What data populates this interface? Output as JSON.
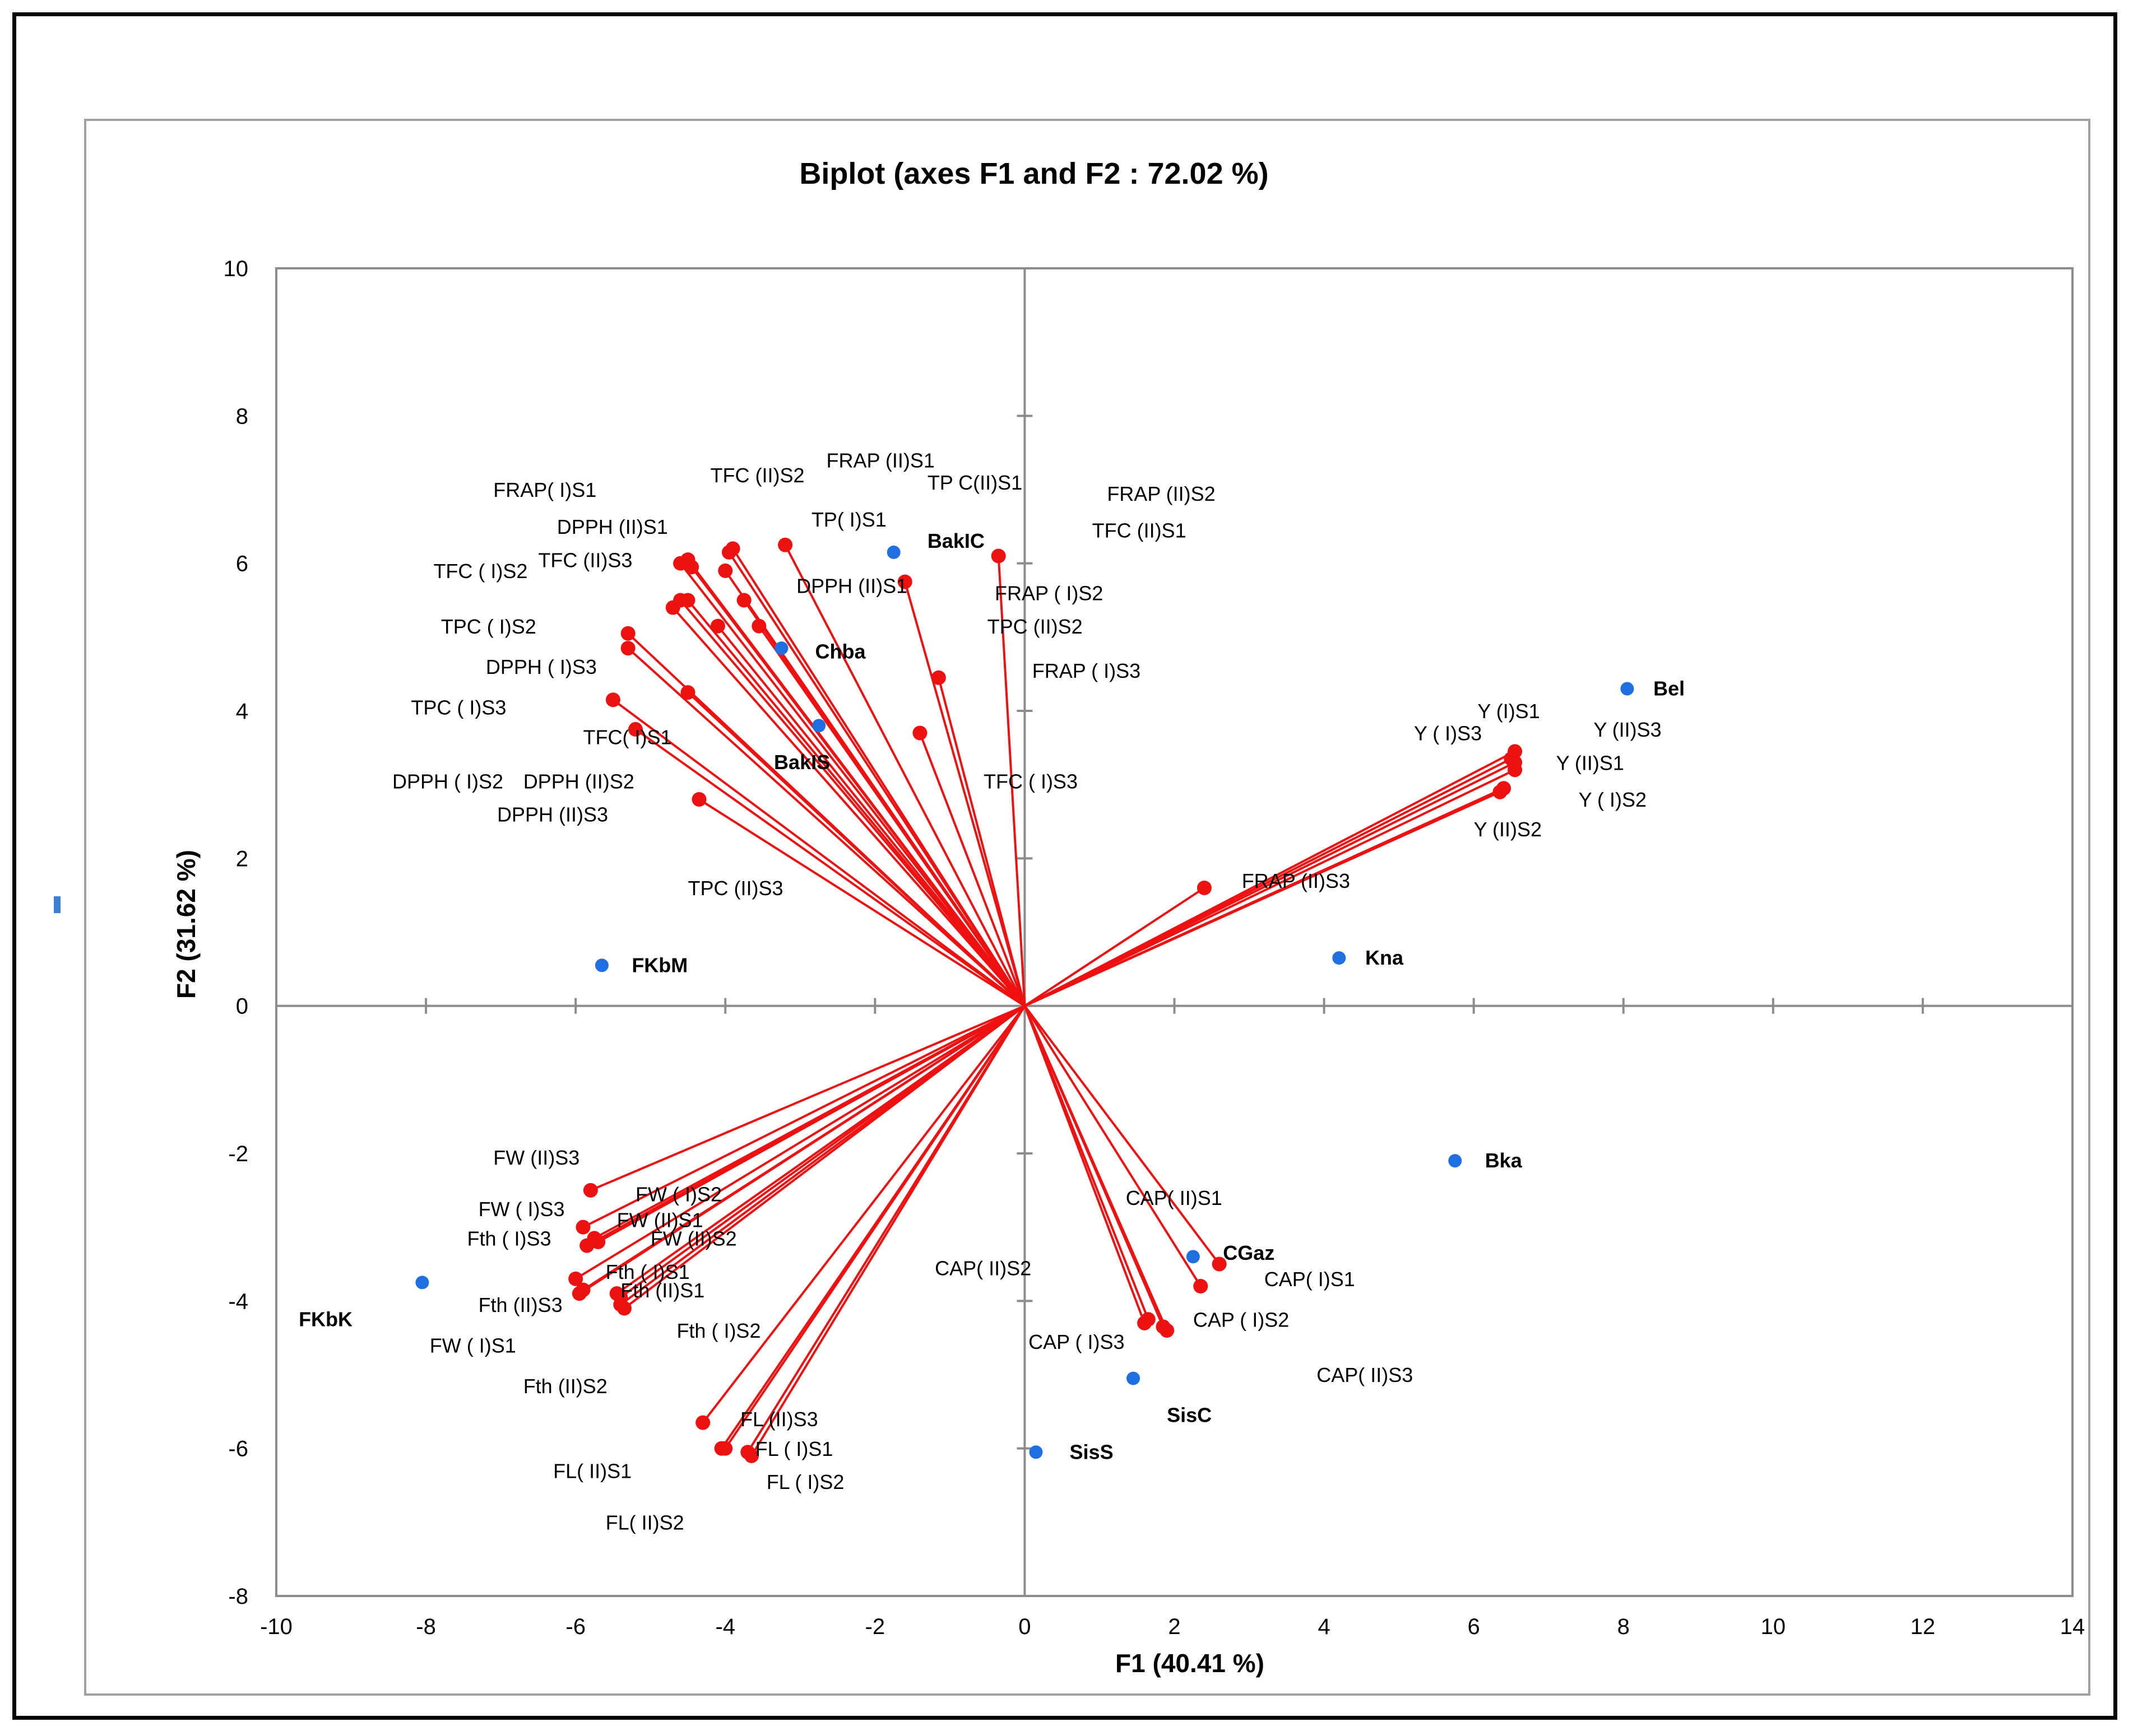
{
  "chart_data": {
    "type": "scatter",
    "subtype": "pca-biplot",
    "title": "Biplot (axes F1 and F2 : 72.02 %)",
    "xlabel": "F1 (40.41 %)",
    "ylabel": "F2 (31.62 %)",
    "xlim": [
      -10,
      14
    ],
    "ylim": [
      -8,
      10
    ],
    "xticks": [
      -10,
      -8,
      -6,
      -4,
      -2,
      0,
      2,
      4,
      6,
      8,
      10,
      12,
      14
    ],
    "yticks": [
      -8,
      -6,
      -4,
      -2,
      0,
      2,
      4,
      6,
      8,
      10
    ],
    "vector_color": "#ee1111",
    "observation_color": "#1f6fe0",
    "variables": [
      {
        "name": "FRAP( I)S1",
        "x": -4.6,
        "y": 6.0
      },
      {
        "name": "TFC (II)S2",
        "x": -4.5,
        "y": 6.05
      },
      {
        "name": "FRAP (II)S1",
        "x": -3.9,
        "y": 6.2
      },
      {
        "name": "TP C(II)S1",
        "x": -3.2,
        "y": 6.25
      },
      {
        "name": "FRAP (II)S2",
        "x": -0.35,
        "y": 6.1
      },
      {
        "name": "DPPH (II)S1",
        "x": -4.45,
        "y": 5.95
      },
      {
        "name": "TP( I)S1",
        "x": -3.95,
        "y": 6.15
      },
      {
        "name": "TFC (II)S1",
        "x": -1.6,
        "y": 5.75
      },
      {
        "name": "TFC (II)S3",
        "x": -4.0,
        "y": 5.9
      },
      {
        "name": "DPPH (II)S1",
        "x": -3.75,
        "y": 5.5
      },
      {
        "name": "TFC ( I)S2",
        "x": -4.6,
        "y": 5.5
      },
      {
        "name": "FRAP ( I)S2",
        "x": -4.5,
        "y": 5.5
      },
      {
        "name": "TPC (II)S2",
        "x": -3.55,
        "y": 5.15
      },
      {
        "name": "TPC ( I)S2",
        "x": -5.3,
        "y": 5.05
      },
      {
        "name": "DPPH ( I)S3",
        "x": -5.3,
        "y": 4.85
      },
      {
        "name": "FRAP ( I)S3",
        "x": -1.15,
        "y": 4.45
      },
      {
        "name": "TPC ( I)S3",
        "x": -4.5,
        "y": 4.25
      },
      {
        "name": "TFC( I)S1",
        "x": -5.5,
        "y": 4.15
      },
      {
        "name": "DPPH ( I)S2",
        "x": -5.2,
        "y": 3.75
      },
      {
        "name": "TFC ( I)S3",
        "x": -1.4,
        "y": 3.7
      },
      {
        "name": "DPPH (II)S2",
        "x": -4.7,
        "y": 5.4
      },
      {
        "name": "DPPH (II)S3",
        "x": -4.1,
        "y": 5.15
      },
      {
        "name": "TPC (II)S3",
        "x": -4.35,
        "y": 2.8
      },
      {
        "name": "Y ( I)S3",
        "x": 6.55,
        "y": 3.45
      },
      {
        "name": "Y (I)S1",
        "x": 6.55,
        "y": 3.3
      },
      {
        "name": "Y (II)S3",
        "x": 6.55,
        "y": 3.2
      },
      {
        "name": "Y (II)S1",
        "x": 6.5,
        "y": 3.35
      },
      {
        "name": "Y ( I)S2",
        "x": 6.4,
        "y": 2.95
      },
      {
        "name": "Y (II)S2",
        "x": 6.35,
        "y": 2.9
      },
      {
        "name": "FRAP (II)S3",
        "x": 2.4,
        "y": 1.6
      },
      {
        "name": "FW (II)S3",
        "x": -5.8,
        "y": -2.5
      },
      {
        "name": "FW ( I)S2",
        "x": -5.9,
        "y": -3.0
      },
      {
        "name": "FW ( I)S3",
        "x": -5.75,
        "y": -3.15
      },
      {
        "name": "FW (II)S1",
        "x": -5.7,
        "y": -3.2
      },
      {
        "name": "FW (II)S2",
        "x": -5.85,
        "y": -3.25
      },
      {
        "name": "Fth ( I)S3",
        "x": -6.0,
        "y": -3.7
      },
      {
        "name": "Fth ( I)S1",
        "x": -5.9,
        "y": -3.85
      },
      {
        "name": "Fth (II)S1",
        "x": -5.45,
        "y": -3.9
      },
      {
        "name": "Fth (II)S3",
        "x": -5.4,
        "y": -4.05
      },
      {
        "name": "FW ( I)S1",
        "x": -5.95,
        "y": -3.9
      },
      {
        "name": "Fth ( I)S2",
        "x": -5.4,
        "y": -3.95
      },
      {
        "name": "Fth (II)S2",
        "x": -5.35,
        "y": -4.1
      },
      {
        "name": "FL (II)S3",
        "x": -4.3,
        "y": -5.65
      },
      {
        "name": "FL( II)S1",
        "x": -4.05,
        "y": -6.0
      },
      {
        "name": "FL ( I)S1",
        "x": -3.7,
        "y": -6.05
      },
      {
        "name": "FL ( I)S2",
        "x": -3.65,
        "y": -6.1
      },
      {
        "name": "FL( II)S2",
        "x": -4.0,
        "y": -6.0
      },
      {
        "name": "CAP( II)S1",
        "x": 2.6,
        "y": -3.5
      },
      {
        "name": "CAP( I)S1",
        "x": 2.35,
        "y": -3.8
      },
      {
        "name": "CAP ( I)S2",
        "x": 1.85,
        "y": -4.35
      },
      {
        "name": "CAP ( I)S3",
        "x": 1.6,
        "y": -4.3
      },
      {
        "name": "CAP( II)S2",
        "x": 1.65,
        "y": -4.25
      },
      {
        "name": "CAP( II)S3",
        "x": 1.9,
        "y": -4.4
      }
    ],
    "variable_labels": [
      {
        "text": "FRAP( I)S1",
        "x": -7.1,
        "y": 6.9
      },
      {
        "text": "TFC (II)S2",
        "x": -4.2,
        "y": 7.1
      },
      {
        "text": "FRAP (II)S1",
        "x": -2.65,
        "y": 7.3
      },
      {
        "text": "TP C(II)S1",
        "x": -1.3,
        "y": 7.0
      },
      {
        "text": "FRAP (II)S2",
        "x": 1.1,
        "y": 6.85
      },
      {
        "text": "DPPH (II)S1",
        "x": -6.25,
        "y": 6.4
      },
      {
        "text": "TP( I)S1",
        "x": -2.85,
        "y": 6.5
      },
      {
        "text": "TFC (II)S1",
        "x": 0.9,
        "y": 6.35
      },
      {
        "text": "TFC (II)S3",
        "x": -6.5,
        "y": 5.95
      },
      {
        "text": "DPPH (II)S1",
        "x": -3.05,
        "y": 5.6
      },
      {
        "text": "TFC ( I)S2",
        "x": -7.9,
        "y": 5.8
      },
      {
        "text": "FRAP ( I)S2",
        "x": -0.4,
        "y": 5.5
      },
      {
        "text": "TPC (II)S2",
        "x": -0.5,
        "y": 5.05
      },
      {
        "text": "TPC ( I)S2",
        "x": -7.8,
        "y": 5.05
      },
      {
        "text": "DPPH ( I)S3",
        "x": -7.2,
        "y": 4.5
      },
      {
        "text": "FRAP ( I)S3",
        "x": 0.1,
        "y": 4.45
      },
      {
        "text": "TPC ( I)S3",
        "x": -8.2,
        "y": 3.95
      },
      {
        "text": "TFC( I)S1",
        "x": -5.9,
        "y": 3.55
      },
      {
        "text": "DPPH ( I)S2",
        "x": -8.45,
        "y": 2.95
      },
      {
        "text": "DPPH (II)S2",
        "x": -6.7,
        "y": 2.95
      },
      {
        "text": "DPPH (II)S3",
        "x": -7.05,
        "y": 2.5
      },
      {
        "text": "TPC (II)S3",
        "x": -4.5,
        "y": 1.5
      },
      {
        "text": "TFC ( I)S3",
        "x": -0.55,
        "y": 2.95
      },
      {
        "text": "Y ( I)S3",
        "x": 5.2,
        "y": 3.6
      },
      {
        "text": "Y (I)S1",
        "x": 6.05,
        "y": 3.9
      },
      {
        "text": "Y (II)S3",
        "x": 7.6,
        "y": 3.65
      },
      {
        "text": "Y (II)S1",
        "x": 7.1,
        "y": 3.2
      },
      {
        "text": "Y ( I)S2",
        "x": 7.4,
        "y": 2.7
      },
      {
        "text": "Y (II)S2",
        "x": 6.0,
        "y": 2.3
      },
      {
        "text": "FRAP (II)S3",
        "x": 2.9,
        "y": 1.6
      },
      {
        "text": "FW (II)S3",
        "x": -7.1,
        "y": -2.15
      },
      {
        "text": "FW ( I)S2",
        "x": -5.2,
        "y": -2.65
      },
      {
        "text": "FW ( I)S3",
        "x": -7.3,
        "y": -2.85
      },
      {
        "text": "FW (II)S1",
        "x": -5.45,
        "y": -3.0
      },
      {
        "text": "FW (II)S2",
        "x": -5.0,
        "y": -3.25
      },
      {
        "text": "Fth ( I)S3",
        "x": -7.45,
        "y": -3.25
      },
      {
        "text": "Fth ( I)S1",
        "x": -5.6,
        "y": -3.7
      },
      {
        "text": "Fth (II)S1",
        "x": -5.4,
        "y": -3.95
      },
      {
        "text": "Fth (II)S3",
        "x": -7.3,
        "y": -4.15
      },
      {
        "text": "FW ( I)S1",
        "x": -7.95,
        "y": -4.7
      },
      {
        "text": "Fth ( I)S2",
        "x": -4.65,
        "y": -4.5
      },
      {
        "text": "Fth (II)S2",
        "x": -6.7,
        "y": -5.25
      },
      {
        "text": "FL (II)S3",
        "x": -3.8,
        "y": -5.7
      },
      {
        "text": "FL ( I)S1",
        "x": -3.6,
        "y": -6.1
      },
      {
        "text": "FL ( I)S2",
        "x": -3.45,
        "y": -6.55
      },
      {
        "text": "FL( II)S1",
        "x": -6.3,
        "y": -6.4
      },
      {
        "text": "FL( II)S2",
        "x": -5.6,
        "y": -7.1
      },
      {
        "text": "CAP( II)S1",
        "x": 1.35,
        "y": -2.7
      },
      {
        "text": "CAP( I)S1",
        "x": 3.2,
        "y": -3.8
      },
      {
        "text": "CAP ( I)S2",
        "x": 2.25,
        "y": -4.35
      },
      {
        "text": "CAP ( I)S3",
        "x": 0.05,
        "y": -4.65
      },
      {
        "text": "CAP( II)S2",
        "x": -1.2,
        "y": -3.65
      },
      {
        "text": "CAP( II)S3",
        "x": 3.9,
        "y": -5.1
      }
    ],
    "observations": [
      {
        "name": "Bel",
        "x": 8.05,
        "y": 4.3
      },
      {
        "name": "BakIC",
        "x": -1.75,
        "y": 6.15
      },
      {
        "name": "Chba",
        "x": -3.25,
        "y": 4.85
      },
      {
        "name": "BakIS",
        "x": -2.75,
        "y": 3.8
      },
      {
        "name": "FKbM",
        "x": -5.65,
        "y": 0.55
      },
      {
        "name": "Kna",
        "x": 4.2,
        "y": 0.65
      },
      {
        "name": "Bka",
        "x": 5.75,
        "y": -2.1
      },
      {
        "name": "CGaz",
        "x": 2.25,
        "y": -3.4
      },
      {
        "name": "SisC",
        "x": 1.45,
        "y": -5.05
      },
      {
        "name": "SisS",
        "x": 0.15,
        "y": -6.05
      },
      {
        "name": "FKbK",
        "x": -8.05,
        "y": -3.75
      }
    ],
    "observation_labels": [
      {
        "text": "Bel",
        "x": 8.4,
        "y": 4.3
      },
      {
        "text": "BakIC",
        "x": -1.3,
        "y": 6.3
      },
      {
        "text": "Chba",
        "x": -2.8,
        "y": 4.8
      },
      {
        "text": "BakIS",
        "x": -3.35,
        "y": 3.3
      },
      {
        "text": "FKbM",
        "x": -5.25,
        "y": 0.55
      },
      {
        "text": "Kna",
        "x": 4.55,
        "y": 0.65
      },
      {
        "text": "Bka",
        "x": 6.15,
        "y": -2.1
      },
      {
        "text": "CGaz",
        "x": 2.65,
        "y": -3.35
      },
      {
        "text": "SisC",
        "x": 1.9,
        "y": -5.55
      },
      {
        "text": "SisS",
        "x": 0.6,
        "y": -6.05
      },
      {
        "text": "FKbK",
        "x": -9.7,
        "y": -4.25
      }
    ]
  }
}
